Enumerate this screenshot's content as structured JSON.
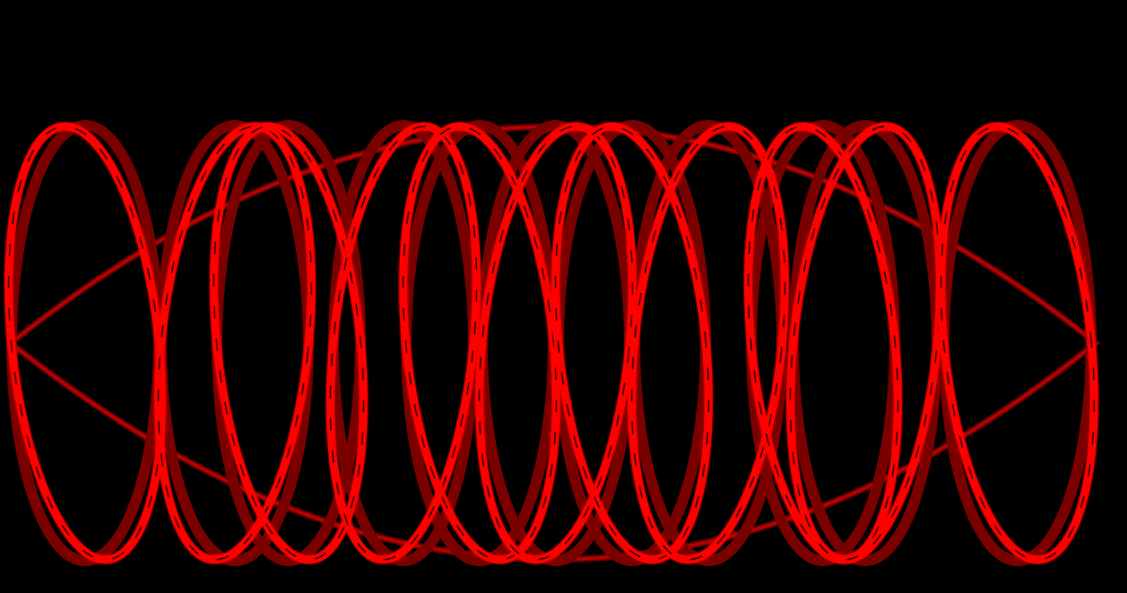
{
  "scene": {
    "background_color": "#000000",
    "stroke_color": "#ff0000",
    "shadow_color": "#7a0000",
    "shapes": [
      {
        "kind": "spindle-envelope",
        "name": "envelope"
      },
      {
        "kind": "ellipse-ring",
        "name": "ring-1"
      },
      {
        "kind": "ellipse-ring",
        "name": "ring-2"
      },
      {
        "kind": "ellipse-ring",
        "name": "ring-3"
      },
      {
        "kind": "ellipse-ring",
        "name": "ring-4"
      },
      {
        "kind": "ellipse-ring",
        "name": "ring-5"
      },
      {
        "kind": "ellipse-ring",
        "name": "ring-6"
      },
      {
        "kind": "ellipse-ring",
        "name": "ring-7"
      },
      {
        "kind": "ellipse-ring",
        "name": "ring-8"
      },
      {
        "kind": "ellipse-ring",
        "name": "ring-9"
      },
      {
        "kind": "ellipse-ring",
        "name": "ring-10"
      },
      {
        "kind": "ellipse-ring",
        "name": "ring-11"
      }
    ]
  }
}
